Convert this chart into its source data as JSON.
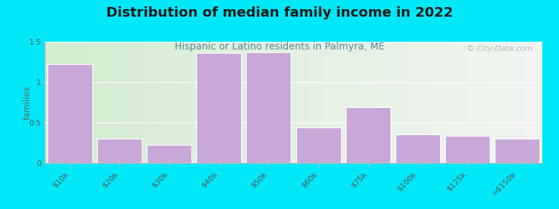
{
  "title": "Distribution of median family income in 2022",
  "subtitle": "Hispanic or Latino residents in Palmyra, ME",
  "categories": [
    "$10k",
    "$20k",
    "$30k",
    "$40k",
    "$50k",
    "$60k",
    "$75k",
    "$100k",
    "$125k",
    ">$150k"
  ],
  "values": [
    1.22,
    0.3,
    0.22,
    1.36,
    1.37,
    0.44,
    0.69,
    0.35,
    0.34,
    0.3
  ],
  "bar_color": "#c8a8d8",
  "bar_edgecolor": "#ffffff",
  "background_outer": "#00e8f8",
  "background_plot_left": "#d4ecd0",
  "background_plot_right": "#f2f5f2",
  "ylim": [
    0,
    1.5
  ],
  "yticks": [
    0,
    0.5,
    1,
    1.5
  ],
  "ylabel": "families",
  "watermark": "© City-Data.com",
  "title_fontsize": 14,
  "subtitle_fontsize": 10,
  "ylabel_fontsize": 9,
  "tick_fontsize": 8
}
